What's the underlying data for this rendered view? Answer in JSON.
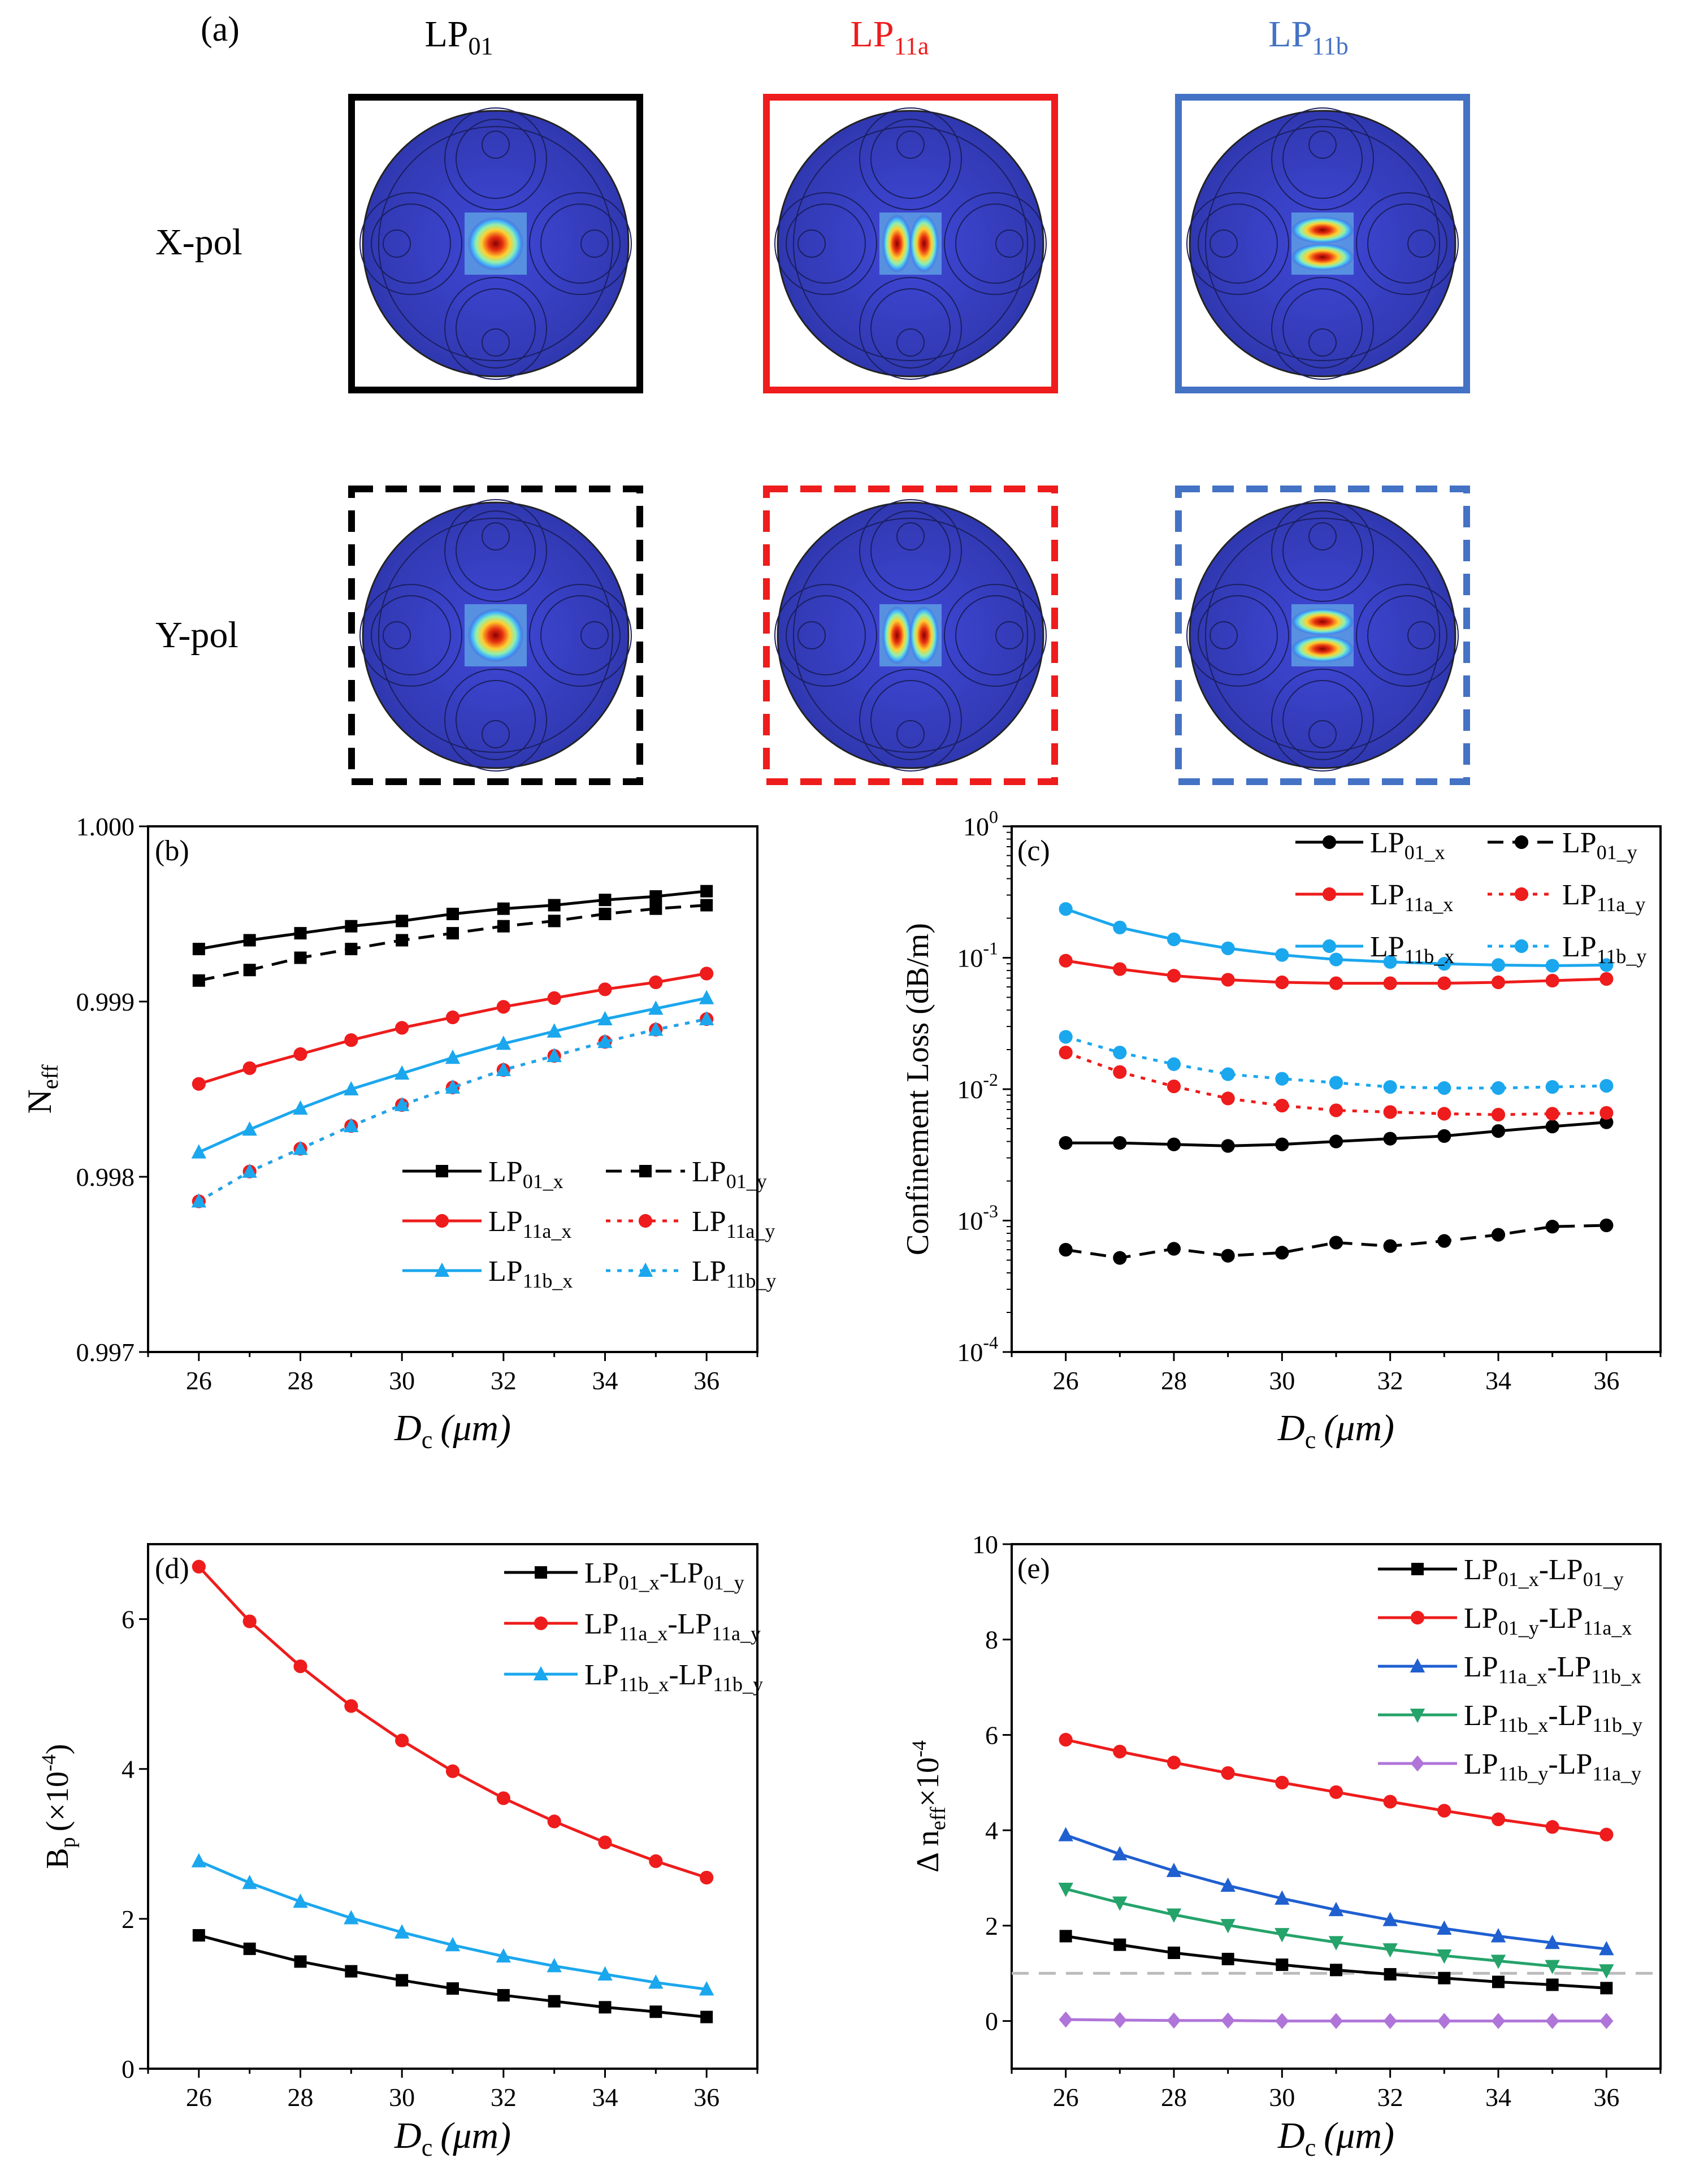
{
  "colors": {
    "black": "#000000",
    "red": "#ee1c1c",
    "blue": "#1ba7ee",
    "darkblue": "#1f5fd0",
    "green": "#24a36a",
    "purple": "#b075d8",
    "frame_blue": "#4472c4",
    "ref_line": "#bbbbbb"
  },
  "panel_a": {
    "label": "(a)",
    "columns": [
      {
        "base": "LP",
        "sub": "01",
        "color": "#000000"
      },
      {
        "base": "LP",
        "sub": "11a",
        "color": "#ee1c1c"
      },
      {
        "base": "LP",
        "sub": "11b",
        "color": "#4472c4"
      }
    ],
    "rows": [
      "X-pol",
      "Y-pol"
    ]
  },
  "chart_data": [
    {
      "id": "b",
      "type": "line",
      "panel_label": "(b)",
      "xlabel": "D",
      "xlabel_sub": "c",
      "xlabel_unit": "(μm)",
      "ylabel": "N",
      "ylabel_sub": "eff",
      "x": [
        26,
        27,
        28,
        29,
        30,
        31,
        32,
        33,
        34,
        35,
        36
      ],
      "xlim": [
        25,
        37
      ],
      "ylim": [
        0.997,
        1.0
      ],
      "xticks": [
        "26",
        "28",
        "30",
        "32",
        "34",
        "36"
      ],
      "yticks": [
        "0.997",
        "0.998",
        "0.999",
        "1.000"
      ],
      "legend_position": "bottom-right",
      "series": [
        {
          "name": "LP",
          "sub": "01_x",
          "color": "#000000",
          "dash": "solid",
          "marker": "square",
          "values": [
            0.9993,
            0.99935,
            0.99939,
            0.99943,
            0.99946,
            0.9995,
            0.99953,
            0.99955,
            0.99958,
            0.9996,
            0.99963
          ]
        },
        {
          "name": "LP",
          "sub": "01_y",
          "color": "#000000",
          "dash": "dash",
          "marker": "square",
          "values": [
            0.99912,
            0.99918,
            0.99925,
            0.9993,
            0.99935,
            0.99939,
            0.99943,
            0.99946,
            0.9995,
            0.99953,
            0.99955
          ]
        },
        {
          "name": "LP",
          "sub": "11a_x",
          "color": "#ee1c1c",
          "dash": "solid",
          "marker": "circle",
          "values": [
            0.99853,
            0.99862,
            0.9987,
            0.99878,
            0.99885,
            0.99891,
            0.99897,
            0.99902,
            0.99907,
            0.99911,
            0.99916
          ]
        },
        {
          "name": "LP",
          "sub": "11a_y",
          "color": "#ee1c1c",
          "dash": "dot",
          "marker": "circle",
          "values": [
            0.99786,
            0.99803,
            0.99816,
            0.99829,
            0.99841,
            0.99851,
            0.99861,
            0.99869,
            0.99877,
            0.99884,
            0.9989
          ]
        },
        {
          "name": "LP",
          "sub": "11b_x",
          "color": "#1ba7ee",
          "dash": "solid",
          "marker": "triangle",
          "values": [
            0.99814,
            0.99827,
            0.99839,
            0.9985,
            0.99859,
            0.99868,
            0.99876,
            0.99883,
            0.9989,
            0.99896,
            0.99902
          ]
        },
        {
          "name": "LP",
          "sub": "11b_y",
          "color": "#1ba7ee",
          "dash": "dot",
          "marker": "triangle",
          "values": [
            0.99786,
            0.99803,
            0.99816,
            0.99829,
            0.99841,
            0.99851,
            0.99861,
            0.99869,
            0.99877,
            0.99884,
            0.9989
          ]
        }
      ]
    },
    {
      "id": "c",
      "type": "line",
      "panel_label": "(c)",
      "xlabel": "D",
      "xlabel_sub": "c",
      "xlabel_unit": "(μm)",
      "ylabel": "Confinement Loss (dB/m)",
      "yscale": "log",
      "x": [
        26,
        27,
        28,
        29,
        30,
        31,
        32,
        33,
        34,
        35,
        36
      ],
      "xlim": [
        25,
        37
      ],
      "ylim": [
        0.0001,
        1
      ],
      "xticks": [
        "26",
        "28",
        "30",
        "32",
        "34",
        "36"
      ],
      "ytick_exponents": [
        "-4",
        "-3",
        "-2",
        "-1",
        "0"
      ],
      "legend_position": "top-right",
      "series": [
        {
          "name": "LP",
          "sub": "01_x",
          "color": "#000000",
          "dash": "solid",
          "marker": "circle",
          "values": [
            0.0039,
            0.0039,
            0.0038,
            0.0037,
            0.0038,
            0.004,
            0.0042,
            0.0044,
            0.0048,
            0.0052,
            0.0056
          ]
        },
        {
          "name": "LP",
          "sub": "01_y",
          "color": "#000000",
          "dash": "dash",
          "marker": "circle",
          "values": [
            0.0006,
            0.00052,
            0.00061,
            0.00054,
            0.00057,
            0.00068,
            0.00064,
            0.0007,
            0.00078,
            0.0009,
            0.00092
          ]
        },
        {
          "name": "LP",
          "sub": "11a_x",
          "color": "#ee1c1c",
          "dash": "solid",
          "marker": "circle",
          "values": [
            0.095,
            0.082,
            0.073,
            0.068,
            0.065,
            0.064,
            0.064,
            0.064,
            0.065,
            0.067,
            0.069
          ]
        },
        {
          "name": "LP",
          "sub": "11a_y",
          "color": "#ee1c1c",
          "dash": "dot",
          "marker": "circle",
          "values": [
            0.019,
            0.0135,
            0.0105,
            0.0085,
            0.0075,
            0.0069,
            0.0067,
            0.0065,
            0.0064,
            0.0065,
            0.0066
          ]
        },
        {
          "name": "LP",
          "sub": "11b_x",
          "color": "#1ba7ee",
          "dash": "solid",
          "marker": "circle",
          "values": [
            0.235,
            0.17,
            0.138,
            0.118,
            0.105,
            0.097,
            0.093,
            0.09,
            0.088,
            0.087,
            0.088
          ]
        },
        {
          "name": "LP",
          "sub": "11b_y",
          "color": "#1ba7ee",
          "dash": "dot",
          "marker": "circle",
          "values": [
            0.025,
            0.019,
            0.0155,
            0.013,
            0.012,
            0.0112,
            0.0104,
            0.0102,
            0.0102,
            0.0104,
            0.0106
          ]
        }
      ]
    },
    {
      "id": "d",
      "type": "line",
      "panel_label": "(d)",
      "xlabel": "D",
      "xlabel_sub": "c",
      "xlabel_unit": "(μm)",
      "ylabel": "B",
      "ylabel_sub": "p",
      "ylabel_tail": "(×10",
      "ylabel_exp": "-4",
      "ylabel_close": ")",
      "x": [
        26,
        27,
        28,
        29,
        30,
        31,
        32,
        33,
        34,
        35,
        36
      ],
      "xlim": [
        25,
        37
      ],
      "ylim": [
        0,
        7
      ],
      "xticks": [
        "26",
        "28",
        "30",
        "32",
        "34",
        "36"
      ],
      "yticks": [
        "0",
        "2",
        "4",
        "6"
      ],
      "legend_position": "top-right",
      "series": [
        {
          "name": "LP",
          "sub": "01_x",
          "name2": "-LP",
          "sub2": "01_y",
          "color": "#000000",
          "dash": "solid",
          "marker": "square",
          "values": [
            1.78,
            1.6,
            1.43,
            1.3,
            1.18,
            1.07,
            0.98,
            0.9,
            0.82,
            0.76,
            0.69
          ]
        },
        {
          "name": "LP",
          "sub": "11a_x",
          "name2": "-LP",
          "sub2": "11a_y",
          "color": "#ee1c1c",
          "dash": "solid",
          "marker": "circle",
          "values": [
            6.7,
            5.97,
            5.37,
            4.84,
            4.38,
            3.97,
            3.61,
            3.3,
            3.02,
            2.77,
            2.55
          ]
        },
        {
          "name": "LP",
          "sub": "11b_x",
          "name2": "-LP",
          "sub2": "11b_y",
          "color": "#1ba7ee",
          "dash": "solid",
          "marker": "triangle",
          "values": [
            2.77,
            2.48,
            2.23,
            2.01,
            1.82,
            1.65,
            1.5,
            1.37,
            1.26,
            1.15,
            1.06
          ]
        }
      ]
    },
    {
      "id": "e",
      "type": "line",
      "panel_label": "(e)",
      "xlabel": "D",
      "xlabel_sub": "c",
      "xlabel_unit": "(μm)",
      "ylabel": "Δ n",
      "ylabel_sub": "eff",
      "ylabel_tail": "×10",
      "ylabel_exp": "-4",
      "x": [
        26,
        27,
        28,
        29,
        30,
        31,
        32,
        33,
        34,
        35,
        36
      ],
      "xlim": [
        25,
        37
      ],
      "ylim": [
        -1,
        10
      ],
      "xticks": [
        "26",
        "28",
        "30",
        "32",
        "34",
        "36"
      ],
      "yticks": [
        "0",
        "2",
        "4",
        "6",
        "8",
        "10"
      ],
      "reference_line": 1,
      "legend_position": "top-right",
      "series": [
        {
          "name": "LP",
          "sub": "01_x",
          "name2": "-LP",
          "sub2": "01_y",
          "color": "#000000",
          "dash": "solid",
          "marker": "square",
          "values": [
            1.78,
            1.6,
            1.43,
            1.3,
            1.18,
            1.07,
            0.98,
            0.9,
            0.82,
            0.76,
            0.69
          ]
        },
        {
          "name": "LP",
          "sub": "01_y",
          "name2": "-LP",
          "sub2": "11a_x",
          "color": "#ee1c1c",
          "dash": "solid",
          "marker": "circle",
          "values": [
            5.9,
            5.65,
            5.42,
            5.2,
            5.0,
            4.8,
            4.6,
            4.41,
            4.23,
            4.07,
            3.91
          ]
        },
        {
          "name": "LP",
          "sub": "11a_x",
          "name2": "-LP",
          "sub2": "11b_x",
          "color": "#1f5fd0",
          "dash": "solid",
          "marker": "triangle",
          "values": [
            3.9,
            3.5,
            3.15,
            2.84,
            2.57,
            2.33,
            2.12,
            1.94,
            1.78,
            1.64,
            1.51
          ]
        },
        {
          "name": "LP",
          "sub": "11b_x",
          "name2": "-LP",
          "sub2": "11b_y",
          "color": "#24a36a",
          "dash": "solid",
          "marker": "triangle-down",
          "values": [
            2.77,
            2.48,
            2.23,
            2.01,
            1.82,
            1.65,
            1.5,
            1.37,
            1.26,
            1.15,
            1.06
          ]
        },
        {
          "name": "LP",
          "sub": "11b_y",
          "name2": "-LP",
          "sub2": "11a_y",
          "color": "#b075d8",
          "dash": "solid",
          "marker": "diamond",
          "values": [
            0.03,
            0.02,
            0.01,
            0.01,
            0.0,
            0.0,
            0.0,
            0.0,
            0.0,
            0.0,
            0.0
          ]
        }
      ]
    }
  ]
}
